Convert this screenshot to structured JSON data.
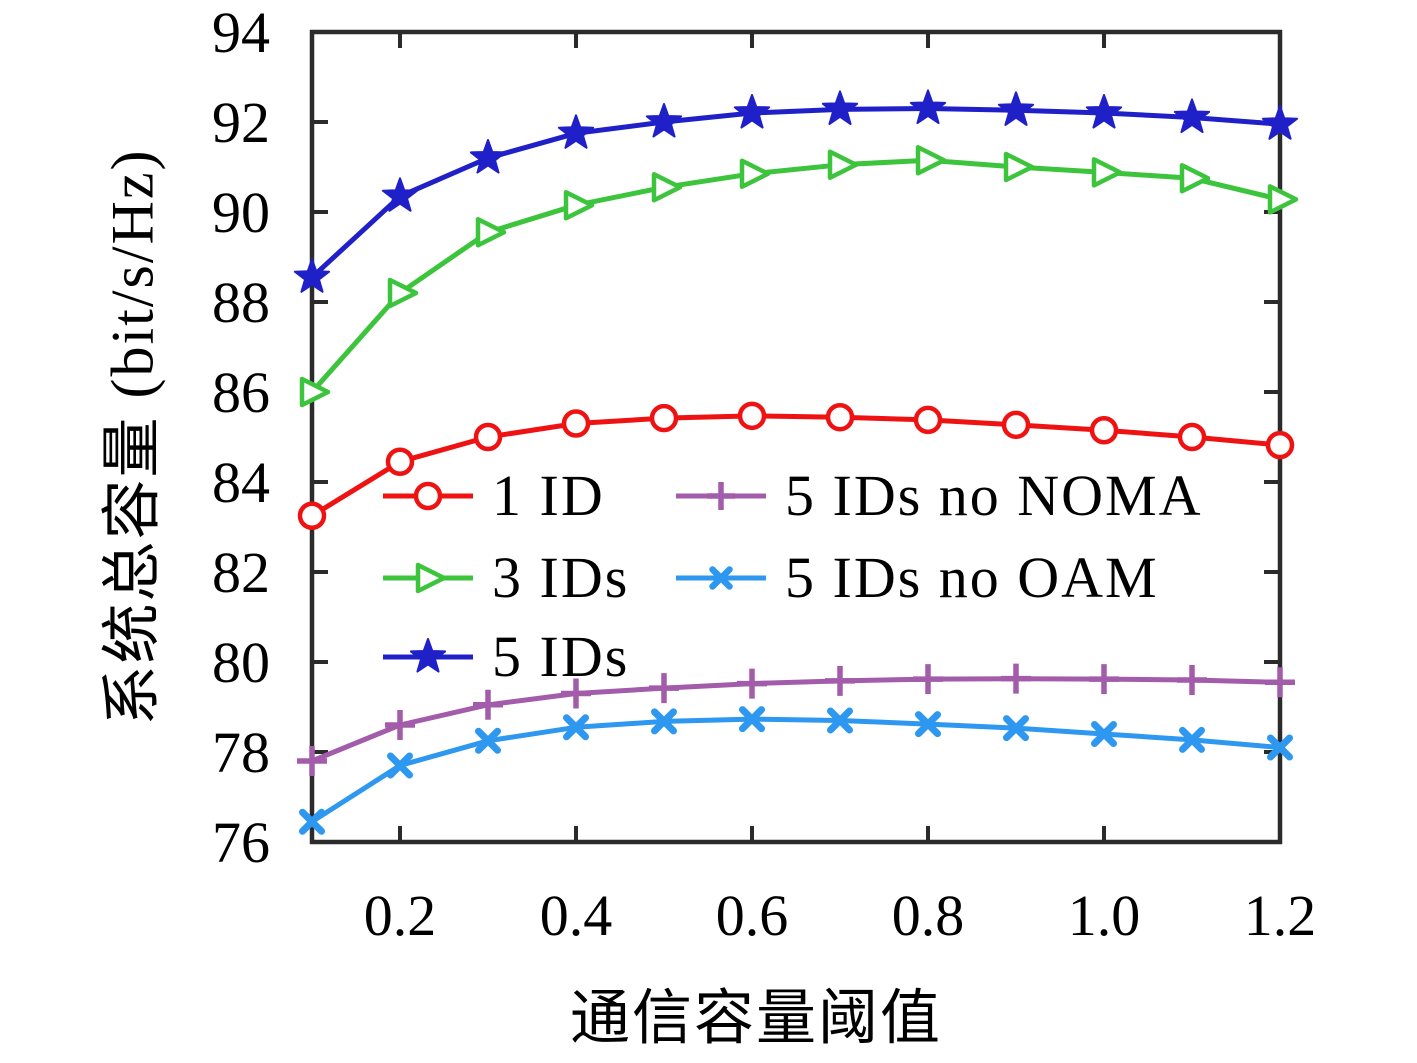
{
  "chart_data": {
    "type": "line",
    "title": "",
    "xlabel": "通信容量阈值",
    "ylabel": "系统总容量 (bit/s/Hz)",
    "xlim": [
      0.1,
      1.2
    ],
    "ylim": [
      76,
      94
    ],
    "grid": false,
    "legend_position": "inside center-left, two columns, no frame",
    "x_ticks": [
      0.2,
      0.4,
      0.6,
      0.8,
      1.0,
      1.2
    ],
    "x_tick_labels": [
      "0.2",
      "0.4",
      "0.6",
      "0.8",
      "1.0",
      "1.2"
    ],
    "y_ticks": [
      76,
      78,
      80,
      82,
      84,
      86,
      88,
      90,
      92,
      94
    ],
    "y_tick_labels": [
      "76",
      "78",
      "80",
      "82",
      "84",
      "86",
      "88",
      "90",
      "92",
      "94"
    ],
    "x": [
      0.1,
      0.2,
      0.3,
      0.4,
      0.5,
      0.6,
      0.7,
      0.8,
      0.9,
      1.0,
      1.1,
      1.2
    ],
    "series": [
      {
        "name": "1 ID",
        "color": "#ee1212",
        "marker": "circle",
        "values": [
          83.25,
          84.45,
          85.0,
          85.3,
          85.42,
          85.47,
          85.44,
          85.38,
          85.27,
          85.15,
          85.0,
          84.82
        ]
      },
      {
        "name": "3 IDs",
        "color": "#3cc43c",
        "marker": "triangle-right",
        "values": [
          86.0,
          88.2,
          89.55,
          90.15,
          90.55,
          90.85,
          91.05,
          91.15,
          91.0,
          90.88,
          90.75,
          90.28
        ]
      },
      {
        "name": "5 IDs",
        "color": "#2020c8",
        "marker": "star",
        "values": [
          88.55,
          90.35,
          91.2,
          91.75,
          92.0,
          92.2,
          92.28,
          92.3,
          92.26,
          92.2,
          92.1,
          91.95
        ]
      },
      {
        "name": "5 IDs no NOMA",
        "color": "#a35caa",
        "marker": "plus",
        "values": [
          77.8,
          78.6,
          79.05,
          79.3,
          79.42,
          79.52,
          79.58,
          79.62,
          79.63,
          79.62,
          79.6,
          79.55
        ]
      },
      {
        "name": "5 IDs no OAM",
        "color": "#2e97ef",
        "marker": "x",
        "values": [
          76.45,
          77.7,
          78.25,
          78.55,
          78.68,
          78.73,
          78.7,
          78.62,
          78.53,
          78.4,
          78.27,
          78.1
        ]
      }
    ]
  },
  "axis_color": "#2b2b2b",
  "background_color": "#ffffff",
  "text_color": "#000000"
}
